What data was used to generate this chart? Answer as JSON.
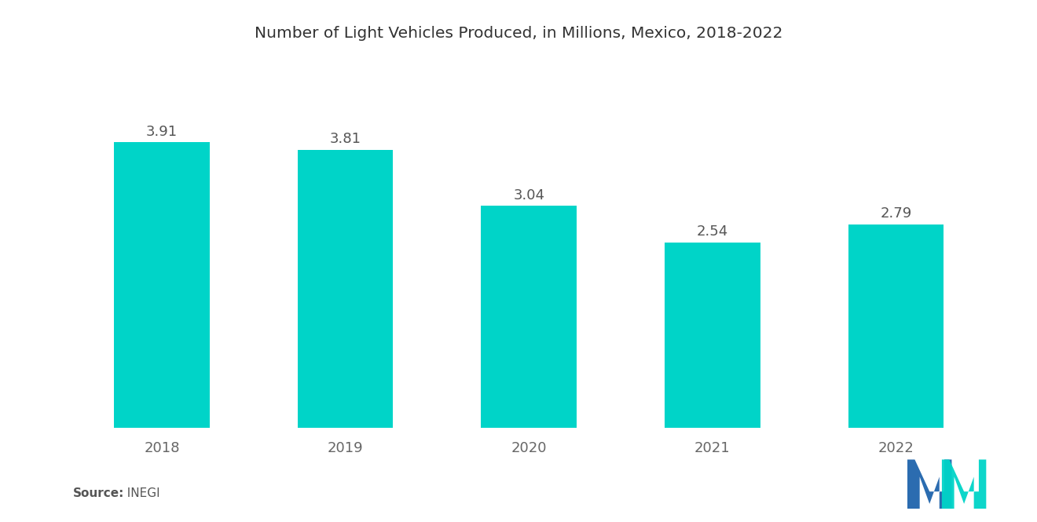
{
  "title": "Number of Light Vehicles Produced, in Millions, Mexico, 2018-2022",
  "categories": [
    "2018",
    "2019",
    "2020",
    "2021",
    "2022"
  ],
  "values": [
    3.91,
    3.81,
    3.04,
    2.54,
    2.79
  ],
  "bar_color": "#00D4C8",
  "background_color": "#ffffff",
  "title_fontsize": 14.5,
  "label_fontsize": 13,
  "value_fontsize": 13,
  "source_bold": "Source:",
  "source_normal": "  INEGI",
  "ylim": [
    0,
    5.0
  ],
  "bar_width": 0.52,
  "logo_blue": "#2B6CB0",
  "logo_teal": "#00D4C8"
}
